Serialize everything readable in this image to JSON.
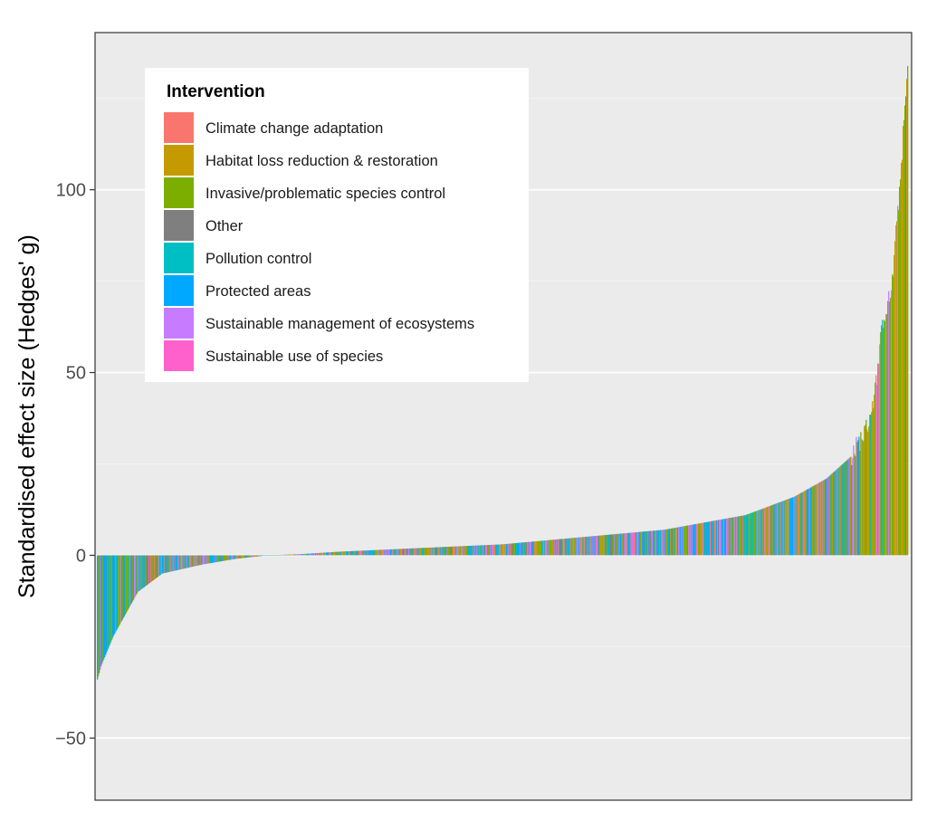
{
  "chart_data": {
    "type": "bar",
    "title": "",
    "xlabel": "",
    "ylabel": "Standardised effect size (Hedges' g)",
    "ylim": [
      -67,
      143
    ],
    "yticks": [
      -50,
      0,
      50,
      100
    ],
    "grid": true,
    "legend_placement": "top-left",
    "legend_title": "Intervention",
    "categories_sorted_ascending": true,
    "n_bars": 900,
    "series": [
      {
        "name": "Climate change adaptation",
        "color": "#F8766D"
      },
      {
        "name": "Habitat loss reduction & restoration",
        "color": "#C49A00"
      },
      {
        "name": "Invasive/problematic species control",
        "color": "#7CAE00"
      },
      {
        "name": "Other",
        "color": "#7F7F7F"
      },
      {
        "name": "Pollution control",
        "color": "#00BFC4"
      },
      {
        "name": "Protected areas",
        "color": "#00A9FF"
      },
      {
        "name": "Sustainable management of ecosystems",
        "color": "#C77CFF"
      },
      {
        "name": "Sustainable use of species",
        "color": "#FF61CC"
      }
    ],
    "value_profile": {
      "fraction": [
        0,
        0.005,
        0.02,
        0.05,
        0.08,
        0.13,
        0.17,
        0.21,
        0.25,
        0.3,
        0.4,
        0.5,
        0.6,
        0.7,
        0.8,
        0.86,
        0.9,
        0.93,
        0.95,
        0.96,
        0.97,
        0.98,
        0.99,
        1.0
      ],
      "value": [
        -34,
        -30,
        -22,
        -10,
        -5,
        -2.5,
        -1,
        0,
        0.3,
        1,
        2,
        3,
        5,
        7,
        11,
        16,
        21,
        27,
        35,
        45,
        65,
        72,
        100,
        133
      ]
    }
  }
}
